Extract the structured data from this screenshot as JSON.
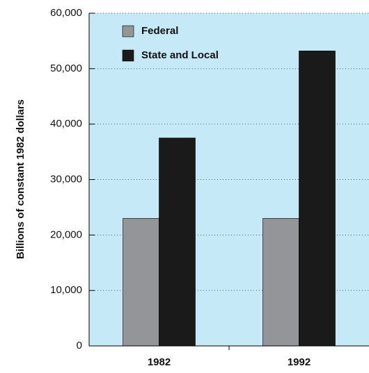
{
  "chart_data": {
    "type": "bar",
    "y_label": "Billions of constant 1982 dollars",
    "categories": [
      "1982",
      "1992"
    ],
    "series": [
      {
        "name": "Federal",
        "color": "#939598",
        "values": [
          23000,
          23000
        ]
      },
      {
        "name": "State and Local",
        "color": "#1a1a1a",
        "values": [
          37500,
          53200
        ]
      }
    ],
    "ylim": [
      0,
      60000
    ],
    "yticks": [
      0,
      {
        "value": 10000,
        "label": "10,000"
      },
      {
        "value": 20000,
        "label": "20,000"
      },
      {
        "value": 30000,
        "label": "30,000"
      },
      {
        "value": 40000,
        "label": "40,000"
      },
      {
        "value": 50000,
        "label": "50,000"
      },
      {
        "value": 60000,
        "label": "60,000"
      }
    ],
    "grid": true,
    "background": "#c6e9f8",
    "legend": "top-left"
  }
}
